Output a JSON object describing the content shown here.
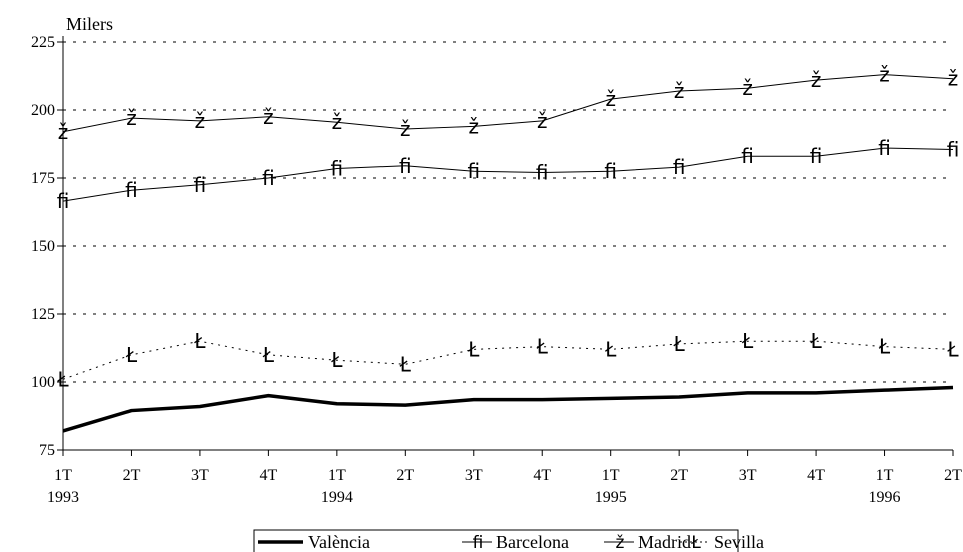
{
  "chart_data": {
    "type": "line",
    "unit_label": "Milers",
    "ylim": [
      75,
      225
    ],
    "yticks": [
      75,
      100,
      125,
      150,
      175,
      200,
      225
    ],
    "grid": "horizontal dashed",
    "categories": [
      "1T 1993",
      "2T 1993",
      "3T 1993",
      "4T 1993",
      "1T 1994",
      "2T 1994",
      "3T 1994",
      "4T 1994",
      "1T 1995",
      "2T 1995",
      "3T 1995",
      "4T 1995",
      "1T 1996",
      "2T 1996"
    ],
    "x_tick_labels": [
      "1T",
      "2T",
      "3T",
      "4T",
      "1T",
      "2T",
      "3T",
      "4T",
      "1T",
      "2T",
      "3T",
      "4T",
      "1T",
      "2T"
    ],
    "year_labels": [
      {
        "index": 0,
        "label": "1993"
      },
      {
        "index": 4,
        "label": "1994"
      },
      {
        "index": 8,
        "label": "1995"
      },
      {
        "index": 12,
        "label": "1996"
      }
    ],
    "legend_position": "bottom",
    "series": [
      {
        "name": "València",
        "style": "thick-solid",
        "marker": "",
        "values": [
          82,
          89.5,
          91,
          95,
          92,
          91.5,
          93.5,
          93.5,
          94,
          94.5,
          96,
          96,
          97,
          98
        ]
      },
      {
        "name": "Barcelona",
        "style": "solid",
        "marker": "ﬁ",
        "values": [
          166.5,
          170.5,
          172.5,
          175,
          178.5,
          179.5,
          177.5,
          177,
          177.5,
          179,
          183,
          183,
          186,
          185.5
        ]
      },
      {
        "name": "Madrid",
        "style": "solid",
        "marker": "ž",
        "values": [
          192,
          197,
          196,
          197.5,
          195.5,
          193,
          194,
          196,
          204,
          207,
          208,
          211,
          213,
          211.5
        ]
      },
      {
        "name": "Sevilla",
        "style": "dotted",
        "marker": "Ł",
        "values": [
          101,
          110,
          115,
          110,
          108,
          106.5,
          112,
          113,
          112,
          114,
          115,
          115,
          113,
          112
        ]
      }
    ]
  }
}
